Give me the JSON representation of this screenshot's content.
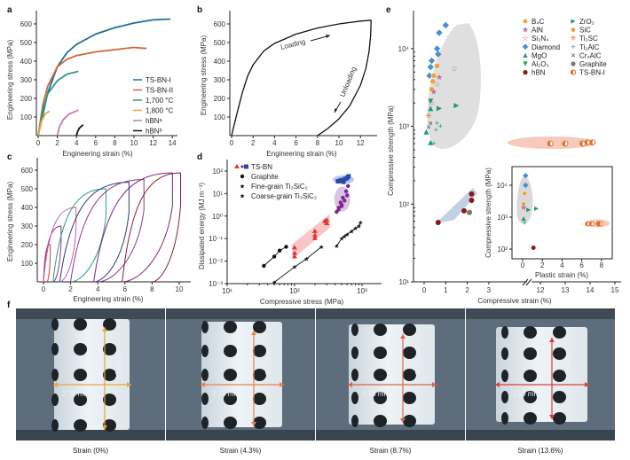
{
  "panels": {
    "a": "a",
    "b": "b",
    "c": "c",
    "d": "d",
    "e": "e",
    "f": "f"
  },
  "chart_data": [
    {
      "id": "a",
      "type": "line",
      "xlabel": "Engineering strain (%)",
      "ylabel": "Engineering stress (MPa)",
      "xlim": [
        0,
        15
      ],
      "ylim": [
        0,
        650
      ],
      "xticks": [
        0,
        2,
        4,
        6,
        8,
        10,
        12,
        14
      ],
      "yticks": [
        100,
        200,
        300,
        400,
        500,
        600
      ],
      "legend_position": "bottom-right",
      "series": [
        {
          "name": "TS-BN-I",
          "color": "#1f6e99",
          "x": [
            0,
            1,
            2,
            3,
            4,
            6,
            8,
            10,
            12,
            13.8
          ],
          "y": [
            0,
            230,
            370,
            445,
            490,
            545,
            580,
            605,
            622,
            626
          ]
        },
        {
          "name": "TS-BN-II",
          "color": "#d0673a",
          "x": [
            0,
            0.5,
            1,
            2,
            3,
            4,
            6,
            8,
            10,
            11.3
          ],
          "y": [
            0,
            170,
            265,
            370,
            410,
            430,
            450,
            462,
            474,
            468
          ]
        },
        {
          "name": "1,700 °C",
          "color": "#2a9d7c",
          "x": [
            0,
            0.5,
            1,
            2,
            3,
            4.2
          ],
          "y": [
            0,
            140,
            225,
            295,
            330,
            345
          ]
        },
        {
          "name": "1,800 °C",
          "color": "#e6a53a",
          "x": [
            0,
            0.3,
            0.7,
            1.2
          ],
          "y": [
            0,
            70,
            115,
            132
          ]
        },
        {
          "name": "hBNᵃ",
          "color": "#c77bb3",
          "x": [
            2,
            2.2,
            2.6,
            3.2,
            4.2
          ],
          "y": [
            0,
            45,
            85,
            115,
            137
          ]
        },
        {
          "name": "hBNᵇ",
          "color": "#111111",
          "x": [
            4,
            4.1,
            4.3,
            4.7
          ],
          "y": [
            0,
            20,
            40,
            58
          ]
        }
      ]
    },
    {
      "id": "b",
      "type": "line",
      "xlabel": "Engineering strain (%)",
      "ylabel": "Engineering stress (MPa)",
      "xlim": [
        0,
        13.5
      ],
      "ylim": [
        0,
        650
      ],
      "xticks": [
        0,
        2,
        4,
        6,
        8,
        10,
        12
      ],
      "yticks": [
        100,
        200,
        300,
        400,
        500,
        600
      ],
      "annotations": [
        "Loading",
        "Unloading"
      ],
      "series": [
        {
          "name": "Loading",
          "color": "#111111",
          "x": [
            0,
            0.5,
            1,
            1.5,
            2,
            3,
            4,
            6,
            8,
            10,
            12,
            13
          ],
          "y": [
            0,
            120,
            230,
            320,
            380,
            455,
            495,
            545,
            578,
            600,
            615,
            620
          ]
        },
        {
          "name": "Unloading",
          "color": "#111111",
          "x": [
            13,
            12.95,
            12.8,
            12.5,
            12,
            11,
            10,
            9,
            8
          ],
          "y": [
            620,
            540,
            450,
            360,
            270,
            160,
            90,
            40,
            0
          ]
        }
      ]
    },
    {
      "id": "c",
      "type": "line",
      "xlabel": "Engineering strain (%)",
      "ylabel": "Engineering stress (MPa)",
      "xlim": [
        -0.3,
        10.8
      ],
      "ylim": [
        0,
        650
      ],
      "xticks": [
        0,
        2,
        4,
        6,
        8,
        10
      ],
      "yticks": [
        100,
        200,
        300,
        400,
        500,
        600
      ],
      "loops": [
        {
          "color": "#d43a3a",
          "start": 0,
          "peak_x": 0.5,
          "peak_y": 200,
          "end": 0.25
        },
        {
          "color": "#8a3a8a",
          "start": 0,
          "peak_x": 1.3,
          "peak_y": 300,
          "end": 0.7
        },
        {
          "color": "#c060b0",
          "start": 0,
          "peak_x": 2.4,
          "peak_y": 400,
          "end": 1.2
        },
        {
          "color": "#2a9d7c",
          "start": 0.7,
          "peak_x": 4.6,
          "peak_y": 500,
          "end": 2.0
        },
        {
          "color": "#2b3a7a",
          "start": 1.2,
          "peak_x": 6.3,
          "peak_y": 535,
          "end": 3.7
        },
        {
          "color": "#8a3a8a",
          "start": 2.0,
          "peak_x": 7.4,
          "peak_y": 550,
          "end": 4.0
        },
        {
          "color": "#7a2a7a",
          "start": 3.7,
          "peak_x": 9.5,
          "peak_y": 585,
          "end": 5.8
        },
        {
          "color": "#8a1f2a",
          "start": 5.8,
          "peak_x": 10.1,
          "peak_y": 585,
          "end": 8.0
        }
      ]
    },
    {
      "id": "d",
      "type": "scatter",
      "xscale": "log",
      "yscale": "log",
      "xlabel": "Compressive stress (MPa)",
      "ylabel": "Dissipated energy (MJ m⁻³)",
      "xlim": [
        10,
        2000
      ],
      "ylim": [
        0.001,
        200
      ],
      "xticks": [
        "10¹",
        "10²",
        "10³"
      ],
      "yticks": [
        "10⁻³",
        "10⁻²",
        "10⁻¹",
        "10⁰",
        "10¹",
        "10²"
      ],
      "legend": [
        "TS-BN",
        "Graphite",
        "Fine-grain Ti₃SiC₂",
        "Coarse-grain Ti₃SiC₂"
      ],
      "series": [
        {
          "name": "TS-BN (red)",
          "color": "#e0343a",
          "marker": "triangle",
          "x": [
            100,
            100,
            100,
            200,
            200,
            200,
            280,
            300,
            300
          ],
          "y": [
            0.06,
            0.035,
            0.025,
            0.3,
            0.2,
            0.15,
            0.8,
            0.65,
            0.9
          ]
        },
        {
          "name": "TS-BN (purple)",
          "color": "#7a2a8a",
          "marker": "circle",
          "x": [
            420,
            450,
            480,
            500,
            520,
            550,
            580,
            600,
            620,
            450,
            500
          ],
          "y": [
            2,
            3,
            5,
            4,
            8,
            6,
            15,
            10,
            25,
            2.5,
            3.5
          ]
        },
        {
          "name": "TS-BN (blue)",
          "color": "#2a4aa8",
          "marker": "square",
          "x": [
            440,
            470,
            500,
            530,
            560,
            600,
            630
          ],
          "y": [
            40,
            42,
            45,
            38,
            50,
            55,
            65
          ]
        },
        {
          "name": "Graphite",
          "color": "#111111",
          "marker": "circle",
          "x": [
            35,
            50,
            60,
            75
          ],
          "y": [
            0.01,
            0.025,
            0.045,
            0.065
          ]
        },
        {
          "name": "Fine-grain Ti3SiC2",
          "color": "#111111",
          "marker": "star",
          "x": [
            50,
            100,
            150,
            250
          ],
          "y": [
            0.002,
            0.009,
            0.02,
            0.065
          ]
        },
        {
          "name": "Coarse-grain Ti3SiC2",
          "color": "#111111",
          "marker": "star",
          "x": [
            420,
            500,
            550,
            600,
            700,
            800,
            900,
            950
          ],
          "y": [
            0.07,
            0.15,
            0.18,
            0.22,
            0.3,
            0.4,
            0.5,
            0.7
          ]
        }
      ]
    },
    {
      "id": "e",
      "type": "scatter",
      "yscale": "log",
      "xlabel": "Compressive strain (%)",
      "ylabel": "Compressive strength (MPa)",
      "xticks": [
        0,
        1,
        2,
        3,
        12,
        13,
        14,
        15
      ],
      "yticks": [
        "10¹",
        "10²",
        "10³",
        "10⁴"
      ],
      "ylim": [
        10,
        30000
      ],
      "axis_break": "between 3 and 12",
      "legend": [
        {
          "name": "B₄C",
          "color": "#e6a53a",
          "marker": "half-hex"
        },
        {
          "name": "AlN",
          "color": "#c06aa0",
          "marker": "star"
        },
        {
          "name": "Si₃N₄",
          "color": "#c06aa0",
          "marker": "star-outline"
        },
        {
          "name": "Diamond",
          "color": "#4a8fd6",
          "marker": "diamond"
        },
        {
          "name": "MgO",
          "color": "#1d9a6c",
          "marker": "triangle-up"
        },
        {
          "name": "Al₂O₃",
          "color": "#1d9a6c",
          "marker": "triangle-down"
        },
        {
          "name": "hBN",
          "color": "#8a1a1a",
          "marker": "sphere"
        },
        {
          "name": "ZrO₂",
          "color": "#1d9a6c",
          "marker": "triangle-right"
        },
        {
          "name": "SiC",
          "color": "#e6a53a",
          "marker": "half-circle"
        },
        {
          "name": "Ti₃SC",
          "color": "#e06a3a",
          "marker": "asterisk"
        },
        {
          "name": "Ti₂AlC",
          "color": "#1d9a6c",
          "marker": "plus"
        },
        {
          "name": "Cr₂AlC",
          "color": "#444444",
          "marker": "cross"
        },
        {
          "name": "Graphite",
          "color": "#777777",
          "marker": "circle"
        },
        {
          "name": "TS-BN-I",
          "color": "#e0702a",
          "marker": "half-circle-lr"
        }
      ],
      "points": [
        {
          "s": "Diamond",
          "x": 1.0,
          "y": 20000
        },
        {
          "s": "Diamond",
          "x": 0.7,
          "y": 16000
        },
        {
          "s": "Diamond",
          "x": 0.6,
          "y": 10000
        },
        {
          "s": "Diamond",
          "x": 0.65,
          "y": 8500
        },
        {
          "s": "Diamond",
          "x": 0.35,
          "y": 7000
        },
        {
          "s": "Diamond",
          "x": 0.3,
          "y": 5800
        },
        {
          "s": "Diamond",
          "x": 0.25,
          "y": 4500
        },
        {
          "s": "B4C",
          "x": 0.6,
          "y": 6000
        },
        {
          "s": "B4C",
          "x": 0.45,
          "y": 4500
        },
        {
          "s": "B4C",
          "x": 0.4,
          "y": 3800
        },
        {
          "s": "B4C",
          "x": 0.35,
          "y": 3000
        },
        {
          "s": "Si3N4",
          "x": 1.4,
          "y": 5500
        },
        {
          "s": "Si3N4",
          "x": 0.6,
          "y": 3500
        },
        {
          "s": "Si3N4",
          "x": 0.35,
          "y": 2000
        },
        {
          "s": "AlN",
          "x": 0.7,
          "y": 4300
        },
        {
          "s": "AlN",
          "x": 0.45,
          "y": 2800
        },
        {
          "s": "ZrO2",
          "x": 0.7,
          "y": 1700
        },
        {
          "s": "ZrO2",
          "x": 1.5,
          "y": 1850
        },
        {
          "s": "MgO",
          "x": 0.3,
          "y": 1700
        },
        {
          "s": "MgO",
          "x": 0.1,
          "y": 850
        },
        {
          "s": "MgO",
          "x": 0.3,
          "y": 620
        },
        {
          "s": "Al2O3",
          "x": 0.3,
          "y": 2100
        },
        {
          "s": "Ti3SC",
          "x": 0.2,
          "y": 1380
        },
        {
          "s": "Cr2AlC",
          "x": 0.3,
          "y": 1100
        },
        {
          "s": "Cr2AlC",
          "x": 0.2,
          "y": 980
        },
        {
          "s": "Ti2AlC",
          "x": 0.6,
          "y": 1100
        },
        {
          "s": "Ti2AlC",
          "x": 0.75,
          "y": 1000
        },
        {
          "s": "Ti2AlC",
          "x": 0.55,
          "y": 900
        },
        {
          "s": "Ti2AlC",
          "x": 0.45,
          "y": 600
        },
        {
          "s": "TS-BN-I",
          "x": 12.4,
          "y": 600
        },
        {
          "s": "TS-BN-I",
          "x": 13.0,
          "y": 600
        },
        {
          "s": "TS-BN-I",
          "x": 13.7,
          "y": 600
        },
        {
          "s": "TS-BN-I",
          "x": 13.9,
          "y": 620
        },
        {
          "s": "TS-BN-I",
          "x": 14.1,
          "y": 620
        },
        {
          "s": "hBN",
          "x": 0.65,
          "y": 58
        },
        {
          "s": "hBN",
          "x": 1.85,
          "y": 82
        },
        {
          "s": "hBN",
          "x": 2.2,
          "y": 112
        },
        {
          "s": "hBN",
          "x": 2.2,
          "y": 135
        },
        {
          "s": "Graphite",
          "x": 2.1,
          "y": 78
        }
      ],
      "inset": {
        "xlabel": "Plastic strain (%)",
        "ylabel": "Compressive strength (MPa)",
        "xticks": [
          0,
          2,
          4,
          6,
          8
        ],
        "yticks": [
          "10²",
          "10³",
          "10⁴"
        ],
        "points": [
          {
            "s": "Diamond",
            "x": 0.3,
            "y": 20000
          },
          {
            "s": "Diamond",
            "x": 0.3,
            "y": 10000
          },
          {
            "s": "B4C",
            "x": 0.2,
            "y": 5500
          },
          {
            "s": "B4C",
            "x": 0.1,
            "y": 2600
          },
          {
            "s": "AlN",
            "x": 0.1,
            "y": 2000
          },
          {
            "s": "ZrO2",
            "x": 0.6,
            "y": 1700
          },
          {
            "s": "ZrO2",
            "x": 1.4,
            "y": 1850
          },
          {
            "s": "MgO",
            "x": 0.1,
            "y": 900
          },
          {
            "s": "Ti2AlC",
            "x": 0.2,
            "y": 650
          },
          {
            "s": "hBN",
            "x": 1.1,
            "y": 110
          },
          {
            "s": "TS-BN-I",
            "x": 6.6,
            "y": 620
          },
          {
            "s": "TS-BN-I",
            "x": 7.0,
            "y": 620
          },
          {
            "s": "TS-BN-I",
            "x": 7.7,
            "y": 620
          },
          {
            "s": "TS-BN-I",
            "x": 7.9,
            "y": 620
          }
        ]
      }
    }
  ],
  "photos": [
    {
      "caption": "Strain (0%)",
      "height_label": "3.46 mm",
      "width_label": "2.70 mm",
      "color": "#e8a53a"
    },
    {
      "caption": "Strain (4.3%)",
      "height_label": "3.31 mm",
      "width_label": "2.73 mm",
      "color": "#e6824a"
    },
    {
      "caption": "Strain (8.7%)",
      "height_label": "3.16 mm",
      "width_label": "2.78 mm",
      "color": "#e0604a"
    },
    {
      "caption": "Strain (13.6%)",
      "height_label": "2.99 mm",
      "width_label": "2.89 mm",
      "color": "#d8403a"
    }
  ]
}
